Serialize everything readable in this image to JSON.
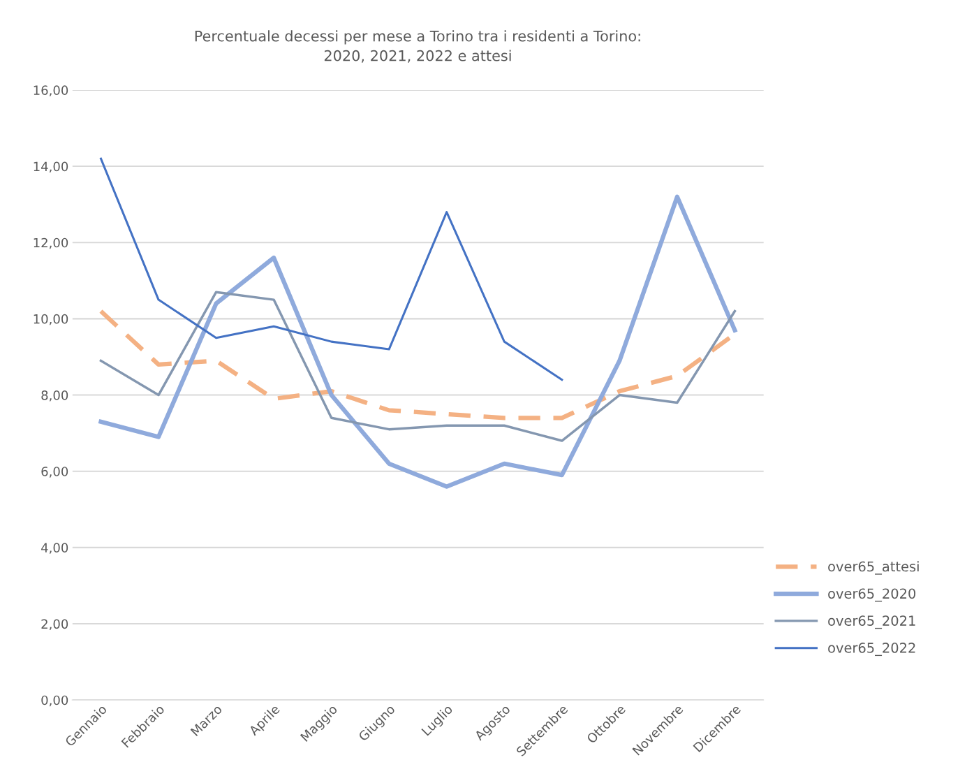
{
  "chart_data": {
    "type": "line",
    "title": "Percentuale decessi per mese a Torino tra i residenti a Torino:\n2020, 2021, 2022 e attesi",
    "categories": [
      "Gennaio",
      "Febbraio",
      "Marzo",
      "Aprile",
      "Maggio",
      "Giugno",
      "Luglio",
      "Agosto",
      "Settembre",
      "Ottobre",
      "Novembre",
      "Dicembre"
    ],
    "series": [
      {
        "name": "over65_attesi",
        "color": "#f4b183",
        "line_style": "dashed",
        "values": [
          10.2,
          8.8,
          8.9,
          7.9,
          8.1,
          7.6,
          7.5,
          7.4,
          7.4,
          8.1,
          8.5,
          9.6
        ]
      },
      {
        "name": "over65_2020",
        "color": "#8faadc",
        "values": [
          7.3,
          6.9,
          10.4,
          11.6,
          8.0,
          6.2,
          5.6,
          6.2,
          5.9,
          8.9,
          13.2,
          9.7
        ]
      },
      {
        "name": "over65_2021",
        "color": "#8497b0",
        "values": [
          8.9,
          8.0,
          10.7,
          10.5,
          7.4,
          7.1,
          7.2,
          7.2,
          6.8,
          8.0,
          7.8,
          10.2
        ]
      },
      {
        "name": "over65_2022",
        "color": "#4472c4",
        "values": [
          14.2,
          10.5,
          9.5,
          9.8,
          9.4,
          9.2,
          12.8,
          9.4,
          8.4,
          null,
          null,
          null
        ]
      }
    ],
    "ylim": [
      0,
      16
    ],
    "yticks": [
      {
        "value": 0,
        "label": "0,00"
      },
      {
        "value": 2,
        "label": "2,00"
      },
      {
        "value": 4,
        "label": "4,00"
      },
      {
        "value": 6,
        "label": "6,00"
      },
      {
        "value": 8,
        "label": "8,00"
      },
      {
        "value": 10,
        "label": "10,00"
      },
      {
        "value": 12,
        "label": "12,00"
      },
      {
        "value": 14,
        "label": "14,00"
      },
      {
        "value": 16,
        "label": "16,00"
      }
    ],
    "grid": "y",
    "legend": "right",
    "line_style": "solid"
  }
}
